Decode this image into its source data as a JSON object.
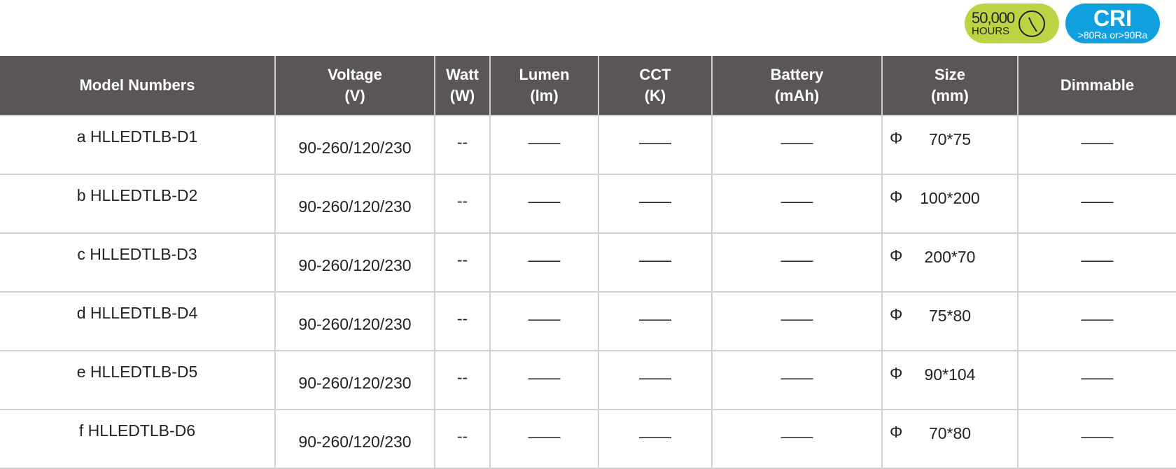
{
  "badges": {
    "hours_number": "50,000",
    "hours_label": "HOURS",
    "cri_title": "CRI",
    "cri_sub": ">80Ra or>90Ra",
    "hours_color": "#bdd344",
    "cri_color": "#10a0e0"
  },
  "table": {
    "headers": [
      [
        "Model Numbers",
        ""
      ],
      [
        "Voltage",
        "(V)"
      ],
      [
        "Watt",
        "(W)"
      ],
      [
        "Lumen",
        "(lm)"
      ],
      [
        "CCT",
        "(K)"
      ],
      [
        "Battery",
        "(mAh)"
      ],
      [
        "Size",
        "(mm)"
      ],
      [
        "Dimmable",
        ""
      ]
    ],
    "rows": [
      {
        "model": "a  HLLEDTLB-D1",
        "voltage": "90-260/120/230",
        "watt": "--",
        "lumen": "——",
        "cct": "——",
        "battery": "——",
        "size_symbol": "Φ",
        "size": "70*75",
        "dimmable": "——"
      },
      {
        "model": "b  HLLEDTLB-D2",
        "voltage": "90-260/120/230",
        "watt": "--",
        "lumen": "——",
        "cct": "——",
        "battery": "——",
        "size_symbol": "Φ",
        "size": "100*200",
        "dimmable": "——"
      },
      {
        "model": "c  HLLEDTLB-D3",
        "voltage": "90-260/120/230",
        "watt": "--",
        "lumen": "——",
        "cct": "——",
        "battery": "——",
        "size_symbol": "Φ",
        "size": "200*70",
        "dimmable": "——"
      },
      {
        "model": "d  HLLEDTLB-D4",
        "voltage": "90-260/120/230",
        "watt": "--",
        "lumen": "——",
        "cct": "——",
        "battery": "——",
        "size_symbol": "Φ",
        "size": "75*80",
        "dimmable": "——"
      },
      {
        "model": "e  HLLEDTLB-D5",
        "voltage": "90-260/120/230",
        "watt": "--",
        "lumen": "——",
        "cct": "——",
        "battery": "——",
        "size_symbol": "Φ",
        "size": "90*104",
        "dimmable": "——"
      },
      {
        "model": "f  HLLEDTLB-D6",
        "voltage": "90-260/120/230",
        "watt": "--",
        "lumen": "——",
        "cct": "——",
        "battery": "——",
        "size_symbol": "Φ",
        "size": "70*80",
        "dimmable": "——"
      }
    ]
  }
}
